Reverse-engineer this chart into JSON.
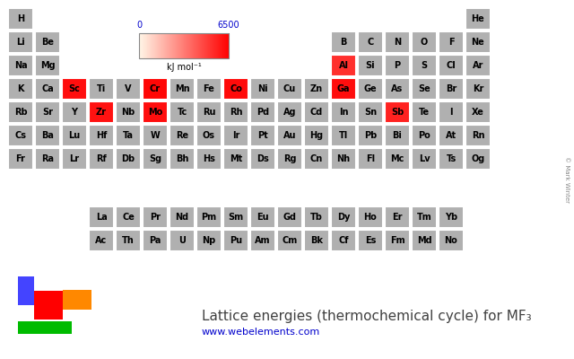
{
  "title": "Lattice energies (thermochemical cycle) for MF₃",
  "url": "www.webelements.com",
  "colorbar_label": "kJ mol⁻¹",
  "vmin": 0,
  "vmax": 6500,
  "background_color": "#ffffff",
  "cell_default_color": "#b0b0b0",
  "cell_border_color": "#ffffff",
  "text_color": "#000000",
  "colorbar_label_color": "#000000",
  "colorbar_tick_color": "#0000cc",
  "url_color": "#0000cc",
  "title_color": "#404040",
  "legend_colors": [
    "#4444ff",
    "#ff0000",
    "#ff8800",
    "#00bb00"
  ],
  "elements": {
    "H": {
      "row": 1,
      "col": 1,
      "value": null
    },
    "He": {
      "row": 1,
      "col": 18,
      "value": null
    },
    "Li": {
      "row": 2,
      "col": 1,
      "value": null
    },
    "Be": {
      "row": 2,
      "col": 2,
      "value": null
    },
    "B": {
      "row": 2,
      "col": 13,
      "value": null
    },
    "C": {
      "row": 2,
      "col": 14,
      "value": null
    },
    "N": {
      "row": 2,
      "col": 15,
      "value": null
    },
    "O": {
      "row": 2,
      "col": 16,
      "value": null
    },
    "F": {
      "row": 2,
      "col": 17,
      "value": null
    },
    "Ne": {
      "row": 2,
      "col": 18,
      "value": null
    },
    "Na": {
      "row": 3,
      "col": 1,
      "value": null
    },
    "Mg": {
      "row": 3,
      "col": 2,
      "value": null
    },
    "Al": {
      "row": 3,
      "col": 13,
      "value": 5218
    },
    "Si": {
      "row": 3,
      "col": 14,
      "value": null
    },
    "P": {
      "row": 3,
      "col": 15,
      "value": null
    },
    "S": {
      "row": 3,
      "col": 16,
      "value": null
    },
    "Cl": {
      "row": 3,
      "col": 17,
      "value": null
    },
    "Ar": {
      "row": 3,
      "col": 18,
      "value": null
    },
    "K": {
      "row": 4,
      "col": 1,
      "value": null
    },
    "Ca": {
      "row": 4,
      "col": 2,
      "value": null
    },
    "Sc": {
      "row": 4,
      "col": 3,
      "value": 6100
    },
    "Ti": {
      "row": 4,
      "col": 4,
      "value": null
    },
    "V": {
      "row": 4,
      "col": 5,
      "value": null
    },
    "Cr": {
      "row": 4,
      "col": 6,
      "value": 6300
    },
    "Mn": {
      "row": 4,
      "col": 7,
      "value": null
    },
    "Fe": {
      "row": 4,
      "col": 8,
      "value": null
    },
    "Co": {
      "row": 4,
      "col": 9,
      "value": 6200
    },
    "Ni": {
      "row": 4,
      "col": 10,
      "value": null
    },
    "Cu": {
      "row": 4,
      "col": 11,
      "value": null
    },
    "Zn": {
      "row": 4,
      "col": 12,
      "value": null
    },
    "Ga": {
      "row": 4,
      "col": 13,
      "value": 6100
    },
    "Ge": {
      "row": 4,
      "col": 14,
      "value": null
    },
    "As": {
      "row": 4,
      "col": 15,
      "value": null
    },
    "Se": {
      "row": 4,
      "col": 16,
      "value": null
    },
    "Br": {
      "row": 4,
      "col": 17,
      "value": null
    },
    "Kr": {
      "row": 4,
      "col": 18,
      "value": null
    },
    "Rb": {
      "row": 5,
      "col": 1,
      "value": null
    },
    "Sr": {
      "row": 5,
      "col": 2,
      "value": null
    },
    "Y": {
      "row": 5,
      "col": 3,
      "value": null
    },
    "Zr": {
      "row": 5,
      "col": 4,
      "value": 6000
    },
    "Nb": {
      "row": 5,
      "col": 5,
      "value": null
    },
    "Mo": {
      "row": 5,
      "col": 6,
      "value": 6100
    },
    "Tc": {
      "row": 5,
      "col": 7,
      "value": null
    },
    "Ru": {
      "row": 5,
      "col": 8,
      "value": null
    },
    "Rh": {
      "row": 5,
      "col": 9,
      "value": null
    },
    "Pd": {
      "row": 5,
      "col": 10,
      "value": null
    },
    "Ag": {
      "row": 5,
      "col": 11,
      "value": null
    },
    "Cd": {
      "row": 5,
      "col": 12,
      "value": null
    },
    "In": {
      "row": 5,
      "col": 13,
      "value": null
    },
    "Sn": {
      "row": 5,
      "col": 14,
      "value": null
    },
    "Sb": {
      "row": 5,
      "col": 15,
      "value": 5600
    },
    "Te": {
      "row": 5,
      "col": 16,
      "value": null
    },
    "I": {
      "row": 5,
      "col": 17,
      "value": null
    },
    "Xe": {
      "row": 5,
      "col": 18,
      "value": null
    },
    "Cs": {
      "row": 6,
      "col": 1,
      "value": null
    },
    "Ba": {
      "row": 6,
      "col": 2,
      "value": null
    },
    "Lu": {
      "row": 6,
      "col": 3,
      "value": null
    },
    "Hf": {
      "row": 6,
      "col": 4,
      "value": null
    },
    "Ta": {
      "row": 6,
      "col": 5,
      "value": null
    },
    "W": {
      "row": 6,
      "col": 6,
      "value": null
    },
    "Re": {
      "row": 6,
      "col": 7,
      "value": null
    },
    "Os": {
      "row": 6,
      "col": 8,
      "value": null
    },
    "Ir": {
      "row": 6,
      "col": 9,
      "value": null
    },
    "Pt": {
      "row": 6,
      "col": 10,
      "value": null
    },
    "Au": {
      "row": 6,
      "col": 11,
      "value": null
    },
    "Hg": {
      "row": 6,
      "col": 12,
      "value": null
    },
    "Tl": {
      "row": 6,
      "col": 13,
      "value": null
    },
    "Pb": {
      "row": 6,
      "col": 14,
      "value": null
    },
    "Bi": {
      "row": 6,
      "col": 15,
      "value": null
    },
    "Po": {
      "row": 6,
      "col": 16,
      "value": null
    },
    "At": {
      "row": 6,
      "col": 17,
      "value": null
    },
    "Rn": {
      "row": 6,
      "col": 18,
      "value": null
    },
    "Fr": {
      "row": 7,
      "col": 1,
      "value": null
    },
    "Ra": {
      "row": 7,
      "col": 2,
      "value": null
    },
    "Lr": {
      "row": 7,
      "col": 3,
      "value": null
    },
    "Rf": {
      "row": 7,
      "col": 4,
      "value": null
    },
    "Db": {
      "row": 7,
      "col": 5,
      "value": null
    },
    "Sg": {
      "row": 7,
      "col": 6,
      "value": null
    },
    "Bh": {
      "row": 7,
      "col": 7,
      "value": null
    },
    "Hs": {
      "row": 7,
      "col": 8,
      "value": null
    },
    "Mt": {
      "row": 7,
      "col": 9,
      "value": null
    },
    "Ds": {
      "row": 7,
      "col": 10,
      "value": null
    },
    "Rg": {
      "row": 7,
      "col": 11,
      "value": null
    },
    "Cn": {
      "row": 7,
      "col": 12,
      "value": null
    },
    "Nh": {
      "row": 7,
      "col": 13,
      "value": null
    },
    "Fl": {
      "row": 7,
      "col": 14,
      "value": null
    },
    "Mc": {
      "row": 7,
      "col": 15,
      "value": null
    },
    "Lv": {
      "row": 7,
      "col": 16,
      "value": null
    },
    "Ts": {
      "row": 7,
      "col": 17,
      "value": null
    },
    "Og": {
      "row": 7,
      "col": 18,
      "value": null
    },
    "La": {
      "row": 9,
      "col": 4,
      "value": null
    },
    "Ce": {
      "row": 9,
      "col": 5,
      "value": null
    },
    "Pr": {
      "row": 9,
      "col": 6,
      "value": null
    },
    "Nd": {
      "row": 9,
      "col": 7,
      "value": null
    },
    "Pm": {
      "row": 9,
      "col": 8,
      "value": null
    },
    "Sm": {
      "row": 9,
      "col": 9,
      "value": null
    },
    "Eu": {
      "row": 9,
      "col": 10,
      "value": null
    },
    "Gd": {
      "row": 9,
      "col": 11,
      "value": null
    },
    "Tb": {
      "row": 9,
      "col": 12,
      "value": null
    },
    "Dy": {
      "row": 9,
      "col": 13,
      "value": null
    },
    "Ho": {
      "row": 9,
      "col": 14,
      "value": null
    },
    "Er": {
      "row": 9,
      "col": 15,
      "value": null
    },
    "Tm": {
      "row": 9,
      "col": 16,
      "value": null
    },
    "Yb": {
      "row": 9,
      "col": 17,
      "value": null
    },
    "Ac": {
      "row": 10,
      "col": 4,
      "value": null
    },
    "Th": {
      "row": 10,
      "col": 5,
      "value": null
    },
    "Pa": {
      "row": 10,
      "col": 6,
      "value": null
    },
    "U": {
      "row": 10,
      "col": 7,
      "value": null
    },
    "Np": {
      "row": 10,
      "col": 8,
      "value": null
    },
    "Pu": {
      "row": 10,
      "col": 9,
      "value": null
    },
    "Am": {
      "row": 10,
      "col": 10,
      "value": null
    },
    "Cm": {
      "row": 10,
      "col": 11,
      "value": null
    },
    "Bk": {
      "row": 10,
      "col": 12,
      "value": null
    },
    "Cf": {
      "row": 10,
      "col": 13,
      "value": null
    },
    "Es": {
      "row": 10,
      "col": 14,
      "value": null
    },
    "Fm": {
      "row": 10,
      "col": 15,
      "value": null
    },
    "Md": {
      "row": 10,
      "col": 16,
      "value": null
    },
    "No": {
      "row": 10,
      "col": 17,
      "value": null
    }
  }
}
